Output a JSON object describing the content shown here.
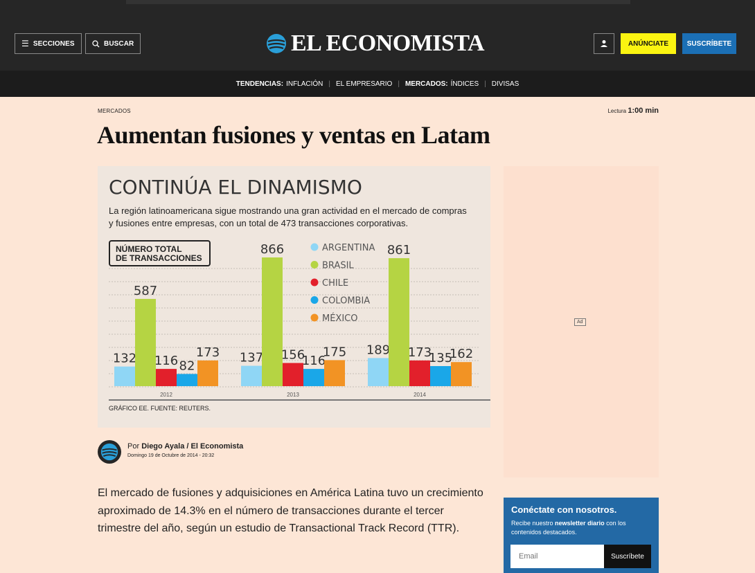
{
  "header": {
    "sections_label": "SECCIONES",
    "search_label": "BUSCAR",
    "logo_text": "EL ECONOMISTA",
    "advertise_label": "ANÚNCIATE",
    "subscribe_label": "SUSCRÍBETE"
  },
  "nav": {
    "trends_label": "TENDENCIAS:",
    "trend_1": "INFLACIÓN",
    "trend_2": "EL EMPRESARIO",
    "markets_label": "MERCADOS:",
    "market_1": "ÍNDICES",
    "market_2": "DIVISAS"
  },
  "article": {
    "kicker": "MERCADOS",
    "reading_label": "Lectura",
    "reading_time": "1:00 min",
    "title": "Aumentan fusiones y ventas en Latam",
    "author_prefix": "Por",
    "author": "Diego Ayala / El Economista",
    "date": "Domingo 19 de Octubre de 2014 - 20:32",
    "body": "El mercado de fusiones y adquisiciones en América Latina tuvo un crecimiento aproximado de 14.3% en el número de transacciones durante el tercer trimestre del año, según un estudio de Transactional Track Record (TTR)."
  },
  "ad": {
    "label": "Ad"
  },
  "newsletter": {
    "title": "Conéctate con nosotros.",
    "subtitle_pre": "Recibe nuestro ",
    "subtitle_bold": "newsletter diario",
    "subtitle_post": " con los contenidos destacados.",
    "email_placeholder": "Email",
    "button_label": "Suscríbete"
  },
  "colors": {
    "argentina": "#8fd6f5",
    "brasil": "#b5d443",
    "chile": "#e2202b",
    "colombia": "#1aa7e8",
    "mexico": "#f29324"
  },
  "chart_data": {
    "type": "bar",
    "title": "CONTINÚA EL DINAMISMO",
    "subtitle_line1": "La región latinoamericana sigue mostrando una gran actividad en el mercado de compras",
    "subtitle_line2": "y fusiones entre empresas, con un total de 473 transacciones corporativas.",
    "box_label_line1": "NÚMERO TOTAL",
    "box_label_line2": "DE TRANSACCIONES",
    "source": "GRÁFICO EE. FUENTE: REUTERS.",
    "categories": [
      "2012",
      "2013",
      "2014"
    ],
    "series": [
      {
        "name": "ARGENTINA",
        "values": [
          132,
          137,
          189
        ]
      },
      {
        "name": "BRASIL",
        "values": [
          587,
          866,
          861
        ]
      },
      {
        "name": "CHILE",
        "values": [
          116,
          156,
          173
        ]
      },
      {
        "name": "COLOMBIA",
        "values": [
          82,
          116,
          135
        ]
      },
      {
        "name": "MÉXICO",
        "values": [
          173,
          175,
          162
        ]
      }
    ],
    "ylim": [
      0,
      866
    ]
  }
}
